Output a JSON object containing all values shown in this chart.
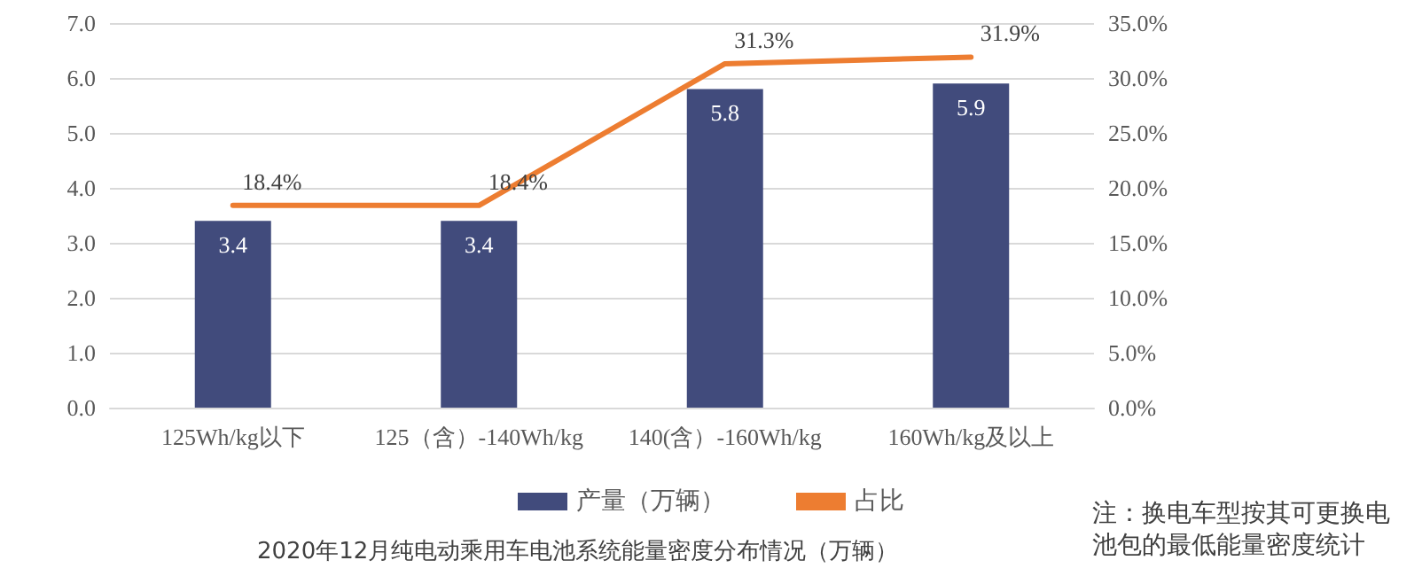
{
  "chart_data": {
    "type": "bar",
    "title": "2020年12月纯电动乘用车电池系统能量密度分布情况（万辆）",
    "categories": [
      "125Wh/kg以下",
      "125（含）-140Wh/kg",
      "140(含）-160Wh/kg",
      "160Wh/kg及以上"
    ],
    "series": [
      {
        "name": "产量（万辆）",
        "color": "#414b7c",
        "values": [
          3.4,
          3.4,
          5.8,
          5.9
        ],
        "value_labels": [
          "3.4",
          "3.4",
          "5.8",
          "5.9"
        ]
      },
      {
        "name": "占比",
        "type": "line",
        "axis": "y2",
        "color": "#ed7d31",
        "values": [
          18.4,
          18.4,
          31.3,
          31.9
        ],
        "value_labels": [
          "18.4%",
          "18.4%",
          "31.3%",
          "31.9%"
        ]
      }
    ],
    "ylim": [
      0,
      7
    ],
    "yticks": [
      {
        "value": 0,
        "label": "0.0"
      },
      {
        "value": 1,
        "label": "1.0"
      },
      {
        "value": 2,
        "label": "2.0"
      },
      {
        "value": 3,
        "label": "3.0"
      },
      {
        "value": 4,
        "label": "4.0"
      },
      {
        "value": 5,
        "label": "5.0"
      },
      {
        "value": 6,
        "label": "6.0"
      },
      {
        "value": 7,
        "label": "7.0"
      }
    ],
    "y2lim": [
      0,
      35
    ],
    "y2ticks": [
      {
        "value": 0,
        "label": "0.0%"
      },
      {
        "value": 5,
        "label": "5.0%"
      },
      {
        "value": 10,
        "label": "10.0%"
      },
      {
        "value": 15,
        "label": "15.0%"
      },
      {
        "value": 20,
        "label": "20.0%"
      },
      {
        "value": 25,
        "label": "25.0%"
      },
      {
        "value": 30,
        "label": "30.0%"
      },
      {
        "value": 35,
        "label": "35.0%"
      }
    ],
    "annotations": [
      "注：换电车型按其可更换电池包的最低能量密度统计"
    ],
    "grid": "y",
    "legend": "bottom",
    "marker": "none",
    "line_style": "solid"
  }
}
